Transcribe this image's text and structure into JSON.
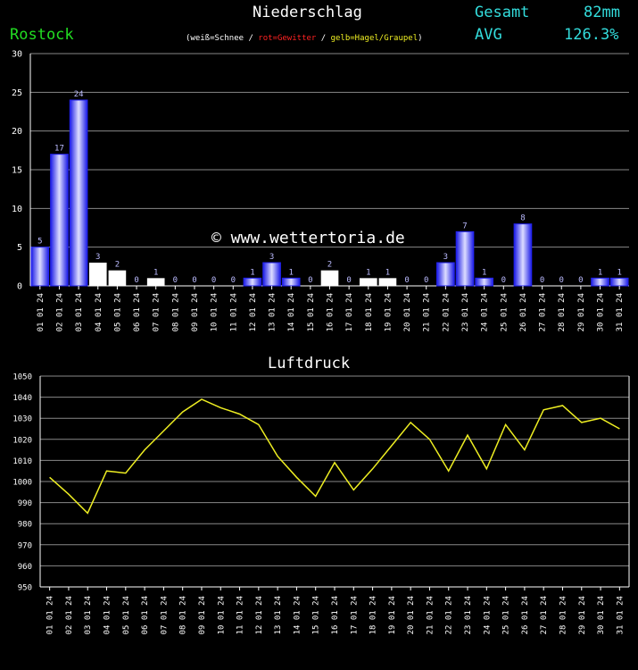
{
  "header": {
    "title": "Niederschlag",
    "station": "Rostock",
    "legend": {
      "open": "(",
      "snow": "weiß=Schnee",
      "sep1": " / ",
      "thunder": "rot=Gewitter",
      "sep2": " / ",
      "hail": "gelb=Hagel/Graupel",
      "close": ")"
    },
    "total_label": "Gesamt",
    "total_value": "82mm",
    "avg_label": "AVG",
    "avg_value": "126.3%"
  },
  "watermark": "© www.wettertoria.de",
  "colors": {
    "rain": "#2222ee",
    "snow": "#ffffff",
    "thunder": "#ff2222",
    "hail": "#eeee22",
    "pressure_line": "#eeee22",
    "grid": "#888888",
    "value_label": "#bbbbff"
  },
  "chart_data": [
    {
      "type": "bar",
      "title": "Niederschlag",
      "categories": [
        "01 01 24",
        "02 01 24",
        "03 01 24",
        "04 01 24",
        "05 01 24",
        "06 01 24",
        "07 01 24",
        "08 01 24",
        "09 01 24",
        "10 01 24",
        "11 01 24",
        "12 01 24",
        "13 01 24",
        "14 01 24",
        "15 01 24",
        "16 01 24",
        "17 01 24",
        "18 01 24",
        "19 01 24",
        "20 01 24",
        "21 01 24",
        "22 01 24",
        "23 01 24",
        "24 01 24",
        "25 01 24",
        "26 01 24",
        "27 01 24",
        "28 01 24",
        "29 01 24",
        "30 01 24",
        "31 01 24"
      ],
      "values": [
        5,
        17,
        24,
        3,
        2,
        0,
        1,
        0,
        0,
        0,
        0,
        1,
        3,
        1,
        0,
        2,
        0,
        1,
        1,
        0,
        0,
        3,
        7,
        1,
        0,
        8,
        0,
        0,
        0,
        1,
        1
      ],
      "precip_type": [
        "rain",
        "rain",
        "rain",
        "snow",
        "snow",
        "none",
        "snow",
        "none",
        "none",
        "none",
        "none",
        "rain",
        "rain",
        "rain",
        "none",
        "snow",
        "none",
        "snow",
        "snow",
        "none",
        "none",
        "rain",
        "rain",
        "rain",
        "none",
        "rain",
        "none",
        "none",
        "none",
        "rain",
        "rain"
      ],
      "ylim": [
        0,
        30
      ],
      "yticks": [
        0,
        5,
        10,
        15,
        20,
        25,
        30
      ],
      "grid": true
    },
    {
      "type": "line",
      "title": "Luftdruck",
      "categories": [
        "01 01 24",
        "02 01 24",
        "03 01 24",
        "04 01 24",
        "05 01 24",
        "06 01 24",
        "07 01 24",
        "08 01 24",
        "09 01 24",
        "10 01 24",
        "11 01 24",
        "12 01 24",
        "13 01 24",
        "14 01 24",
        "15 01 24",
        "16 01 24",
        "17 01 24",
        "18 01 24",
        "19 01 24",
        "20 01 24",
        "21 01 24",
        "22 01 24",
        "23 01 24",
        "24 01 24",
        "25 01 24",
        "26 01 24",
        "27 01 24",
        "28 01 24",
        "29 01 24",
        "30 01 24",
        "31 01 24"
      ],
      "values": [
        1002,
        994,
        985,
        1005,
        1004,
        1015,
        1024,
        1033,
        1039,
        1035,
        1032,
        1027,
        1012,
        1002,
        993,
        1009,
        996,
        1006,
        1017,
        1028,
        1020,
        1005,
        1022,
        1006,
        1027,
        1015,
        1034,
        1036,
        1028,
        1030,
        1025
      ],
      "ylim": [
        950,
        1050
      ],
      "yticks": [
        950,
        960,
        970,
        980,
        990,
        1000,
        1010,
        1020,
        1030,
        1040,
        1050
      ],
      "grid": true
    }
  ]
}
